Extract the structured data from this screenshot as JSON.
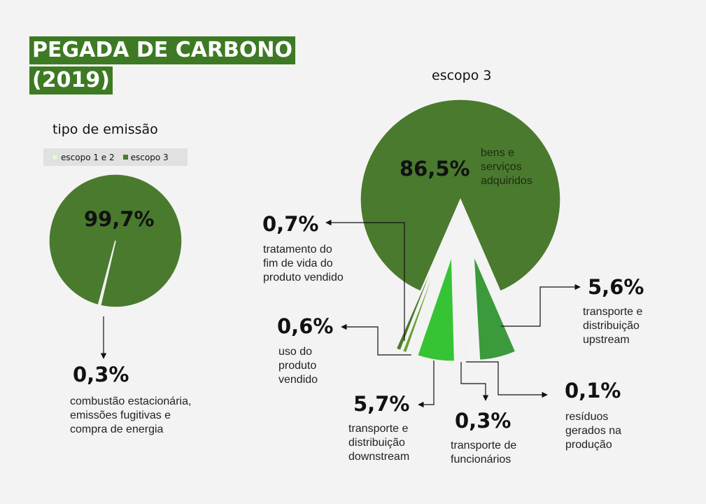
{
  "header": {
    "title_line1": "PEGADA DE CARBONO",
    "title_line2": "(2019)"
  },
  "colors": {
    "dark_green": "#4a7a2e",
    "bright_green": "#36c434",
    "mid_green": "#3b9a3b",
    "olive": "#6aa12c",
    "pale": "#e8f3e2",
    "background": "#f3f3f3",
    "arrow": "#111111"
  },
  "chart_data": [
    {
      "type": "pie",
      "title": "tipo de emissão",
      "legend": [
        "escopo 1 e 2",
        "escopo 3"
      ],
      "slices": [
        {
          "name": "escopo 1 e 2",
          "value": 0.3
        },
        {
          "name": "escopo 3",
          "value": 99.7
        }
      ],
      "labels": {
        "main_pct": "99,7%",
        "small_pct": "0,3%",
        "small_desc": [
          "combustão estacionária,",
          "emissões fugitivas e",
          "compra de energia"
        ]
      }
    },
    {
      "type": "pie",
      "title": "escopo 3",
      "slices": [
        {
          "name": "bens e serviços adquiridos",
          "value": 86.5,
          "pct_label": "86,5%",
          "desc": [
            "bens e",
            "serviços",
            "adquiridos"
          ]
        },
        {
          "name": "transporte e distribuição upstream",
          "value": 5.6,
          "pct_label": "5,6%",
          "desc": [
            "transporte e",
            "distribuição",
            "upstream"
          ]
        },
        {
          "name": "resíduos gerados na produção",
          "value": 0.1,
          "pct_label": "0,1%",
          "desc": [
            "resíduos",
            "gerados na",
            "produção"
          ]
        },
        {
          "name": "transporte de funcionários",
          "value": 0.3,
          "pct_label": "0,3%",
          "desc": [
            "transporte de",
            "funcionários"
          ]
        },
        {
          "name": "transporte e distribuição downstream",
          "value": 5.7,
          "pct_label": "5,7%",
          "desc": [
            "transporte e",
            "distribuição",
            "downstream"
          ]
        },
        {
          "name": "uso do produto vendido",
          "value": 0.6,
          "pct_label": "0,6%",
          "desc": [
            "uso do",
            "produto",
            "vendido"
          ]
        },
        {
          "name": "tratamento do fim de vida do produto vendido",
          "value": 0.7,
          "pct_label": "0,7%",
          "desc": [
            "tratamento do",
            "fim de vida do",
            "produto vendido"
          ]
        }
      ]
    }
  ]
}
